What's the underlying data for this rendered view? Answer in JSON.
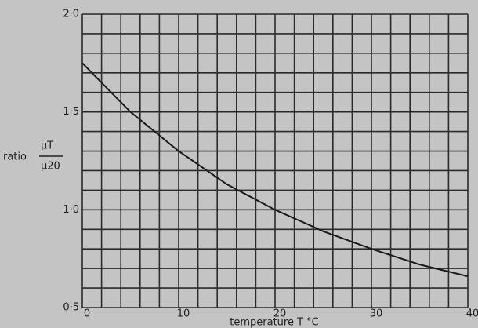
{
  "chart_data": {
    "type": "line",
    "y_label": "ratio",
    "y_label_num": "μT",
    "y_label_den": "μ20",
    "x_label": "temperature T °C",
    "x": [
      0,
      5,
      10,
      15,
      20,
      25,
      30,
      35,
      40
    ],
    "series": [
      {
        "color": "#1a1a1a",
        "values": [
          1.75,
          1.5,
          1.3,
          1.13,
          1.0,
          0.89,
          0.8,
          0.72,
          0.66
        ]
      }
    ],
    "xlim": [
      0,
      40
    ],
    "ylim": [
      0.5,
      2.0
    ],
    "xticks": [
      0,
      10,
      20,
      30,
      40
    ],
    "yticks": [
      {
        "value": 0.5,
        "label": "0·5"
      },
      {
        "value": 1.0,
        "label": "1·0"
      },
      {
        "value": 1.5,
        "label": "1·5"
      },
      {
        "value": 2.0,
        "label": "2·0"
      }
    ],
    "xgrid": [
      0,
      2,
      4,
      6,
      8,
      10,
      12,
      14,
      16,
      18,
      20,
      22,
      24,
      26,
      28,
      30,
      32,
      34,
      36,
      38,
      40
    ],
    "ygrid": [
      0.5,
      0.6,
      0.7,
      0.8,
      0.9,
      1.0,
      1.1,
      1.2,
      1.3,
      1.4,
      1.5,
      1.6,
      1.7,
      1.8,
      1.9,
      2.0
    ],
    "grid": true
  }
}
